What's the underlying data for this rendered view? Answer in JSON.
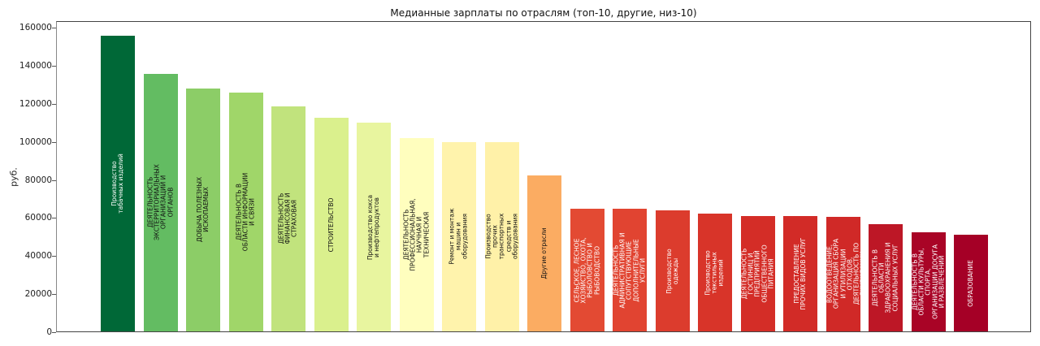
{
  "chart_data": {
    "type": "bar",
    "title": "Медианные зарплаты по отраслям (топ-10, другие, низ-10)",
    "xlabel": "",
    "ylabel": "руб.",
    "ylim": [
      0,
      163500
    ],
    "yticks": [
      0,
      20000,
      40000,
      60000,
      80000,
      100000,
      120000,
      140000,
      160000
    ],
    "grid": false,
    "legend": null,
    "colormap": "RdYlGn (reversed ranking: green = highest, red = lowest)",
    "categories": [
      "Производство табачных изделий",
      "ДЕЯТЕЛЬНОСТЬ ЭКСТЕРРИТОРИАЛЬНЫХ ОРГАНИЗАЦИЙ И ОРГАНОВ",
      "ДОБЫЧА ПОЛЕЗНЫХ ИСКОПАЕМЫХ",
      "ДЕЯТЕЛЬНОСТЬ В ОБЛАСТИ ИНФОРМАЦИИ И СВЯЗИ",
      "ДЕЯТЕЛЬНОСТЬ ФИНАНСОВАЯ И СТРАХОВАЯ",
      "СТРОИТЕЛЬСТВО",
      "Производство кокса и нефтепродуктов",
      "ДЕЯТЕЛЬНОСТЬ ПРОФЕССИОНАЛЬНАЯ, НАУЧНАЯ И ТЕХНИЧЕСКАЯ",
      "Ремонт и монтаж машин и оборудования",
      "Производство прочих транспортных средств и оборудования",
      "Другие отрасли",
      "СЕЛЬСКОЕ, ЛЕСНОЕ ХОЗЯЙСТВО, ОХОТА, РЫБОЛОВСТВО И РЫБОВОДСТВО",
      "ДЕЯТЕЛЬНОСТЬ АДМИНИСТРАТИВНАЯ И СОПУТСТВУЮЩИЕ ДОПОЛНИТЕЛЬНЫЕ УСЛУГИ",
      "Производство одежды",
      "Производство текстильных изделий",
      "ДЕЯТЕЛЬНОСТЬ ГОСТИНИЦ И ПРЕДПРИЯТИЙ ОБЩЕСТВЕННОГО ПИТАНИЯ",
      "ПРЕДОСТАВЛЕНИЕ ПРОЧИХ ВИДОВ УСЛУГ",
      "ВОДОСНАБЖЕНИЕ; ВОДООТВЕДЕНИЕ, ОРГАНИЗАЦИЯ СБОРА И УТИЛИЗАЦИИ ОТХОДОВ, ДЕЯТЕЛЬНОСТЬ ПО ЛИКВИДАЦИИ ЗАГРЯЗНЕНИЙ",
      "ДЕЯТЕЛЬНОСТЬ В ОБЛАСТИ ЗДРАВООХРАНЕНИЯ И СОЦИАЛЬНЫХ УСЛУГ",
      "ДЕЯТЕЛЬНОСТЬ В ОБЛАСТИ КУЛЬТУРЫ, СПОРТА, ОРГАНИЗАЦИИ ДОСУГА И РАЗВЛЕЧЕНИЙ",
      "ОБРАЗОВАНИЕ"
    ],
    "values": [
      155500,
      135300,
      127600,
      125600,
      118300,
      112200,
      109600,
      101400,
      99500,
      99500,
      81900,
      64400,
      64400,
      63400,
      61700,
      60400,
      60400,
      60300,
      56200,
      51900,
      50600
    ],
    "bars": [
      {
        "label": "Производство\nтабачных изделий",
        "value": 155500,
        "color": "#006837",
        "text_color": "#ffffff"
      },
      {
        "label": "ДЕЯТЕЛЬНОСТЬ\nЭКСТЕРРИТОРИАЛЬНЫХ\nОРГАНИЗАЦИЙ И\nОРГАНОВ",
        "value": 135300,
        "color": "#63bc62",
        "text_color": "#111111"
      },
      {
        "label": "ДОБЫЧА ПОЛЕЗНЫХ\nИСКОПАЕМЫХ",
        "value": 127600,
        "color": "#8ccd67",
        "text_color": "#111111"
      },
      {
        "label": "ДЕЯТЕЛЬНОСТЬ В\nОБЛАСТИ ИНФОРМАЦИИ\nИ СВЯЗИ",
        "value": 125600,
        "color": "#a0d669",
        "text_color": "#111111"
      },
      {
        "label": "ДЕЯТЕЛЬНОСТЬ\nФИНАНСОВАЯ И\nСТРАХОВАЯ",
        "value": 118300,
        "color": "#c1e37d",
        "text_color": "#111111"
      },
      {
        "label": "СТРОИТЕЛЬСТВО",
        "value": 112200,
        "color": "#daf08d",
        "text_color": "#111111"
      },
      {
        "label": "Производство кокса\nи нефтепродуктов",
        "value": 109600,
        "color": "#e8f59f",
        "text_color": "#111111"
      },
      {
        "label": "ДЕЯТЕЛЬНОСТЬ\nПРОФЕССИОНАЛЬНАЯ,\nНАУЧНАЯ И\nТЕХНИЧЕСКАЯ",
        "value": 101400,
        "color": "#fffebe",
        "text_color": "#111111"
      },
      {
        "label": "Ремонт и монтаж\nмашин и\nоборудования",
        "value": 99500,
        "color": "#fff3ac",
        "text_color": "#111111"
      },
      {
        "label": "Производство\nпрочих\nтранспортных\nсредств и\nоборудования",
        "value": 99500,
        "color": "#fff1a8",
        "text_color": "#111111"
      },
      {
        "label": "Другие отрасли",
        "value": 81900,
        "color": "#fbac62",
        "text_color": "#111111"
      },
      {
        "label": "СЕЛЬСКОЕ, ЛЕСНОЕ\nХОЗЯЙСТВО, ОХОТА,\nРЫБОЛОВСТВО И\nРЫБОВОДСТВО",
        "value": 64400,
        "color": "#e34a33",
        "text_color": "#ffffff"
      },
      {
        "label": "ДЕЯТЕЛЬНОСТЬ\nАДМИНИСТРАТИВНАЯ И\nСОПУТСТВУЮЩИЕ\nДОПОЛНИТЕЛЬНЫЕ\nУСЛУГИ",
        "value": 64400,
        "color": "#e14431",
        "text_color": "#ffffff"
      },
      {
        "label": "Производство\nодежды",
        "value": 63400,
        "color": "#dc3c2d",
        "text_color": "#ffffff"
      },
      {
        "label": "Производство\nтекстильных\nизделий",
        "value": 61700,
        "color": "#d83429",
        "text_color": "#ffffff"
      },
      {
        "label": "ДЕЯТЕЛЬНОСТЬ\nГОСТИНИЦ И\nПРЕДПРИЯТИЙ\nОБЩЕСТВЕННОГО\nПИТАНИЯ",
        "value": 60400,
        "color": "#d42d27",
        "text_color": "#ffffff"
      },
      {
        "label": "ПРЕДОСТАВЛЕНИЕ\nПРОЧИХ ВИДОВ УСЛУГ",
        "value": 60400,
        "color": "#d22b27",
        "text_color": "#ffffff"
      },
      {
        "label": "ВОДОСНАБЖЕНИЕ;\nВОДООТВЕДЕНИЕ,\nОРГАНИЗАЦИЯ СБОРА\nИ УТИЛИЗАЦИИ\nОТХОДОВ,\nДЕЯТЕЛЬНОСТЬ ПО\nЛИКВИДАЦИИ",
        "value": 60300,
        "color": "#d02927",
        "text_color": "#ffffff"
      },
      {
        "label": "ДЕЯТЕЛЬНОСТЬ В\nОБЛАСТИ\nЗДРАВООХРАНЕНИЯ И\nСОЦИАЛЬНЫХ УСЛУГ",
        "value": 56200,
        "color": "#bd1726",
        "text_color": "#ffffff"
      },
      {
        "label": "ДЕЯТЕЛЬНОСТЬ В\nОБЛАСТИ КУЛЬТУРЫ,\nСПОРТА,\nОРГАНИЗАЦИИ ДОСУГА\nИ РАЗВЛЕЧЕНИЙ",
        "value": 51900,
        "color": "#a90426",
        "text_color": "#ffffff"
      },
      {
        "label": "ОБРАЗОВАНИЕ",
        "value": 50600,
        "color": "#a50026",
        "text_color": "#ffffff"
      }
    ]
  }
}
